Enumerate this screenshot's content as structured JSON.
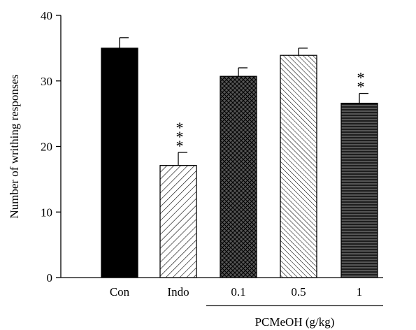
{
  "chart_data": {
    "type": "bar",
    "categories": [
      "Con",
      "Indo",
      "0.1",
      "0.5",
      "1"
    ],
    "values": [
      35.0,
      17.1,
      30.7,
      33.9,
      26.6
    ],
    "errors": [
      1.6,
      2.0,
      1.3,
      1.1,
      1.5
    ],
    "significance": [
      "",
      "***",
      "",
      "",
      "**"
    ],
    "fills": [
      "solid",
      "diagonal",
      "crosshatch",
      "diagonal-dense",
      "horizontal"
    ],
    "ylabel": "Number of writhing responses",
    "xlabel": "",
    "group_label": "PCMeOH (g/kg)",
    "group_categories": [
      "0.1",
      "0.5",
      "1"
    ],
    "ylim": [
      0,
      40
    ],
    "yticks": [
      0,
      10,
      20,
      30,
      40
    ],
    "grid": false,
    "colors": {
      "solid": "#000000",
      "dark_fill": "#555555",
      "stroke": "#000000"
    }
  }
}
